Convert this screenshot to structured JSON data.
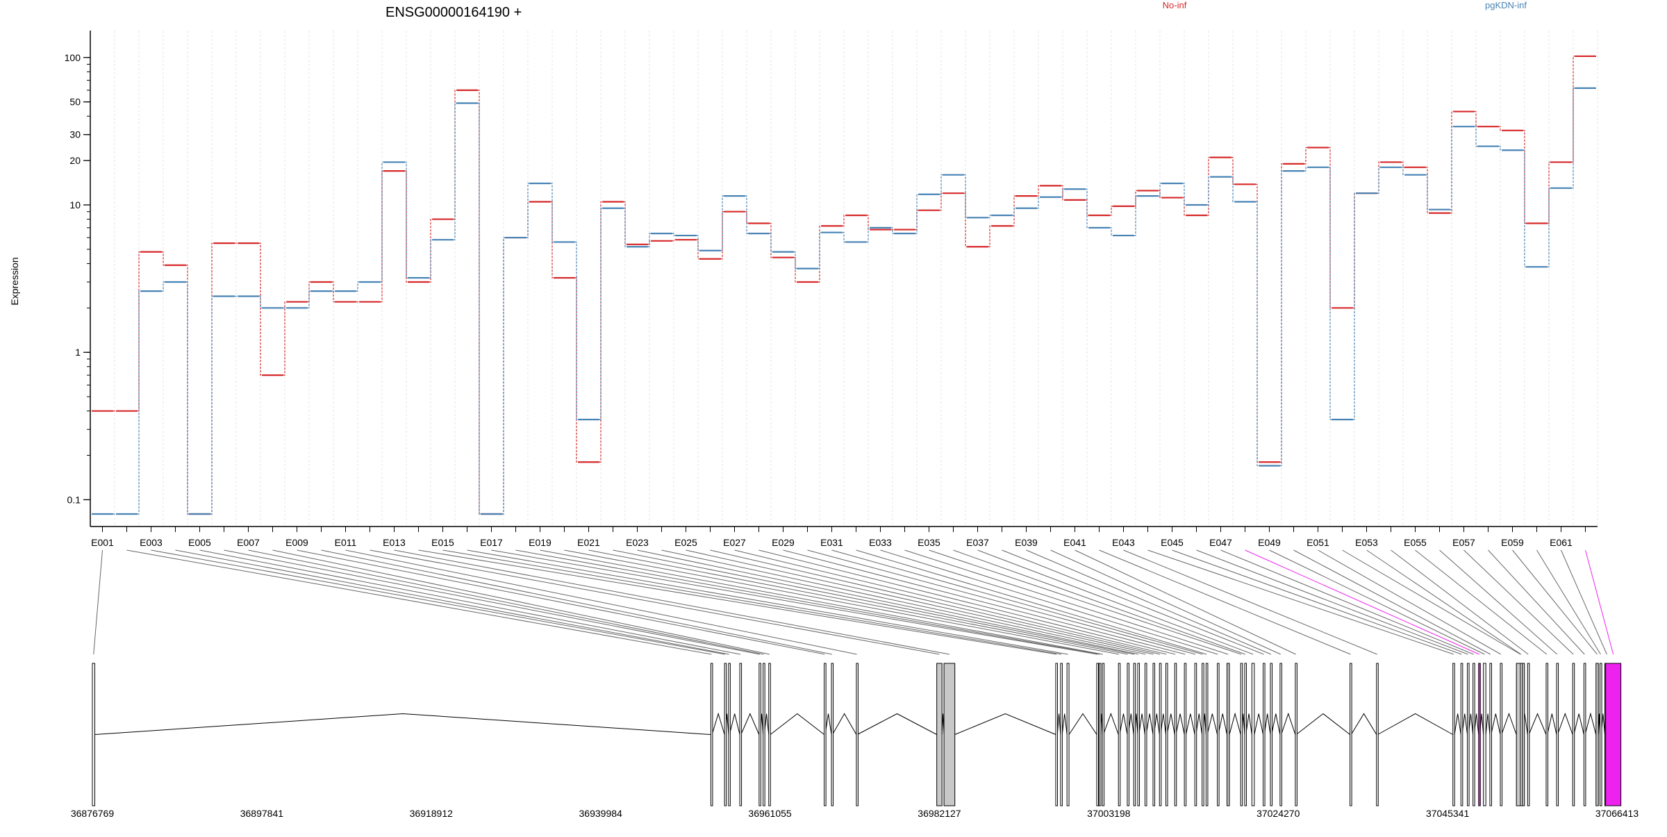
{
  "chart_data": {
    "type": "line",
    "title": "ENSG00000164190 +",
    "ylabel": "Expression",
    "yscale": "log",
    "ylim": [
      0.08,
      110
    ],
    "yticks": [
      {
        "v": 0.1,
        "label": "0.1"
      },
      {
        "v": 1,
        "label": "1"
      },
      {
        "v": 10,
        "label": "10"
      },
      {
        "v": 20,
        "label": "20"
      },
      {
        "v": 30,
        "label": "30"
      },
      {
        "v": 50,
        "label": "50"
      },
      {
        "v": 100,
        "label": "100"
      }
    ],
    "exons": [
      "E001",
      "E002",
      "E003",
      "E004",
      "E005",
      "E006",
      "E007",
      "E008",
      "E009",
      "E010",
      "E011",
      "E012",
      "E013",
      "E014",
      "E015",
      "E016",
      "E017",
      "E018",
      "E019",
      "E020",
      "E021",
      "E022",
      "E023",
      "E024",
      "E025",
      "E026",
      "E027",
      "E028",
      "E029",
      "E030",
      "E031",
      "E032",
      "E033",
      "E034",
      "E035",
      "E036",
      "E037",
      "E038",
      "E039",
      "E040",
      "E041",
      "E042",
      "E043",
      "E044",
      "E045",
      "E046",
      "E047",
      "E048",
      "E049",
      "E050",
      "E051",
      "E052",
      "E053",
      "E054",
      "E055",
      "E056",
      "E057",
      "E058",
      "E059",
      "E060",
      "E061",
      "E062"
    ],
    "exon_tick_labels": [
      "E001",
      "",
      "E003",
      "",
      "E005",
      "",
      "E007",
      "",
      "E009",
      "",
      "E011",
      "",
      "E013",
      "",
      "E015",
      "",
      "E017",
      "",
      "E019",
      "",
      "E021",
      "",
      "E023",
      "",
      "E025",
      "",
      "E027",
      "",
      "E029",
      "",
      "E031",
      "",
      "E033",
      "",
      "E035",
      "",
      "E037",
      "",
      "E039",
      "",
      "E041",
      "",
      "E043",
      "",
      "E045",
      "",
      "E047",
      "",
      "E049",
      "",
      "E051",
      "",
      "E053",
      "",
      "E055",
      "",
      "E057",
      "",
      "E059",
      "",
      "E061",
      ""
    ],
    "series": [
      {
        "name": "No-inf",
        "color": "#d62728",
        "values": [
          0.4,
          0.4,
          4.8,
          3.9,
          0.08,
          5.5,
          5.5,
          0.7,
          2.2,
          3.0,
          2.2,
          2.2,
          17.0,
          3.0,
          8.0,
          60.0,
          0.08,
          6.0,
          10.5,
          3.2,
          0.18,
          10.5,
          5.4,
          5.7,
          5.8,
          4.3,
          9.0,
          7.5,
          4.4,
          3.0,
          7.2,
          8.5,
          6.8,
          6.8,
          9.2,
          12.0,
          5.2,
          7.2,
          11.5,
          13.5,
          10.8,
          8.5,
          9.8,
          12.5,
          11.2,
          8.5,
          21.0,
          13.8,
          0.18,
          19.0,
          24.5,
          2.0,
          12.0,
          19.5,
          18.0,
          8.8,
          43.0,
          34.0,
          32.0,
          7.5,
          19.5,
          102.0
        ]
      },
      {
        "name": "pgKDN-inf",
        "color": "#4682b4",
        "values": [
          0.08,
          0.08,
          2.6,
          3.0,
          0.08,
          2.4,
          2.4,
          2.0,
          2.0,
          2.6,
          2.6,
          3.0,
          19.5,
          3.2,
          5.8,
          49.0,
          0.08,
          6.0,
          14.0,
          5.6,
          0.35,
          9.5,
          5.2,
          6.4,
          6.2,
          4.9,
          11.5,
          6.4,
          4.8,
          3.7,
          6.5,
          5.6,
          7.0,
          6.4,
          11.8,
          16.0,
          8.2,
          8.5,
          9.5,
          11.3,
          12.8,
          7.0,
          6.2,
          11.5,
          14.0,
          10.0,
          15.5,
          10.5,
          0.17,
          17.0,
          18.0,
          0.35,
          12.0,
          18.0,
          16.0,
          9.3,
          34.0,
          25.0,
          23.5,
          3.8,
          13.0,
          62.0
        ]
      }
    ],
    "genome": {
      "range": [
        36876769,
        37066413
      ],
      "tick_labels": [
        "36876769",
        "36897841",
        "36918912",
        "36939984",
        "36961055",
        "36982127",
        "37003198",
        "37024270",
        "37045341",
        "37066413"
      ],
      "exon_starts": [
        36876769,
        36953700,
        36955400,
        36955900,
        36957300,
        36959700,
        36960200,
        36960900,
        36967800,
        36968700,
        36971800,
        36981800,
        36982700,
        36996600,
        36997200,
        36998000,
        37001700,
        37002000,
        37002400,
        37004400,
        37005500,
        37006300,
        37006800,
        37007700,
        37008700,
        37009500,
        37010300,
        37011400,
        37012600,
        37013900,
        37014800,
        37015300,
        37016700,
        37017900,
        37019600,
        37020100,
        37021000,
        37022400,
        37023300,
        37024500,
        37026400,
        37033200,
        37036500,
        37046000,
        37047000,
        37047800,
        37048500,
        37049200,
        37049800,
        37050600,
        37051900,
        37053900,
        37054400,
        37055300,
        37057600,
        37058900,
        37060900,
        37062300,
        37063800,
        37064300,
        37064900,
        37065000
      ],
      "exon_widths": [
        300,
        150,
        120,
        120,
        150,
        150,
        150,
        200,
        120,
        120,
        120,
        650,
        1350,
        200,
        200,
        250,
        150,
        150,
        120,
        150,
        120,
        150,
        150,
        150,
        120,
        150,
        150,
        150,
        200,
        150,
        150,
        150,
        120,
        300,
        150,
        150,
        300,
        150,
        150,
        150,
        120,
        150,
        150,
        200,
        150,
        150,
        150,
        150,
        300,
        150,
        150,
        1000,
        150,
        150,
        150,
        120,
        150,
        150,
        300,
        150,
        500,
        1900
      ],
      "grey_exons": [
        "E012",
        "E013",
        "E034",
        "E052",
        "E059"
      ],
      "highlight_exons": [
        "E048",
        "E062"
      ],
      "highlight_color": "#ee22ee"
    }
  }
}
